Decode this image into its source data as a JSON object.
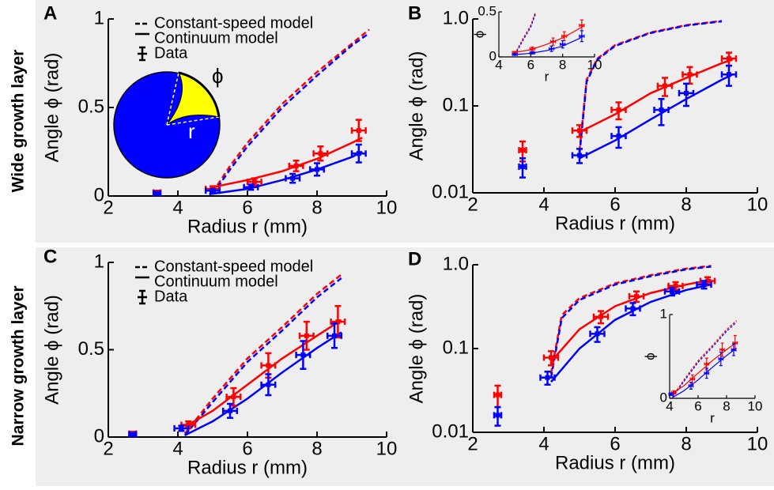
{
  "row_labels": [
    "Wide growth layer",
    "Narrow growth layer"
  ],
  "chart_data": [
    {
      "type": "line",
      "label": "A",
      "xlabel": "Radius r (mm)",
      "ylabel": "Angle ϕ  (rad)",
      "xlim": [
        2,
        10
      ],
      "ylim": [
        0,
        1
      ],
      "xticks": [
        2,
        4,
        6,
        8,
        10
      ],
      "yticks": [
        0,
        0.5,
        1
      ],
      "log_y": false,
      "legend": [
        {
          "label": "Constant-speed model",
          "style": "dashed"
        },
        {
          "label": "Continuum model",
          "style": "solid"
        },
        {
          "label": "Data",
          "style": "points"
        }
      ],
      "annotations": [
        "ϕ",
        "r"
      ],
      "series": [
        {
          "color": "#ff0000",
          "style": "dashed",
          "x": [
            5,
            5.5,
            6,
            7,
            8,
            9,
            9.5
          ],
          "values": [
            0.02,
            0.17,
            0.3,
            0.52,
            0.7,
            0.86,
            0.94
          ]
        },
        {
          "color": "#0000ff",
          "style": "dashed",
          "x": [
            5,
            5.5,
            6,
            7,
            8,
            9,
            9.5
          ],
          "values": [
            0.01,
            0.15,
            0.28,
            0.5,
            0.68,
            0.85,
            0.92
          ]
        },
        {
          "color": "#ff0000",
          "style": "solid",
          "x": [
            5,
            6,
            7,
            8,
            9,
            9.3
          ],
          "values": [
            0.05,
            0.09,
            0.14,
            0.21,
            0.3,
            0.33
          ]
        },
        {
          "color": "#0000ff",
          "style": "solid",
          "x": [
            4.9,
            6,
            7,
            8,
            9,
            9.3
          ],
          "values": [
            0.01,
            0.04,
            0.09,
            0.15,
            0.22,
            0.25
          ]
        },
        {
          "color": "#ff0000",
          "style": "points",
          "x": [
            3.4,
            5,
            6.2,
            7.4,
            8.1,
            9.2
          ],
          "values": [
            0.02,
            0.04,
            0.08,
            0.17,
            0.24,
            0.37
          ],
          "xerr": [
            0.1,
            0.2,
            0.2,
            0.2,
            0.2,
            0.2
          ],
          "yerr": [
            0.01,
            0.015,
            0.02,
            0.03,
            0.04,
            0.06
          ]
        },
        {
          "color": "#0000ff",
          "style": "points",
          "x": [
            3.4,
            5,
            6.1,
            7.3,
            8,
            9.2
          ],
          "values": [
            0.015,
            0.03,
            0.05,
            0.1,
            0.15,
            0.24
          ],
          "xerr": [
            0.1,
            0.2,
            0.2,
            0.2,
            0.2,
            0.2
          ],
          "yerr": [
            0.008,
            0.01,
            0.015,
            0.025,
            0.035,
            0.05
          ]
        }
      ]
    },
    {
      "type": "line",
      "label": "B",
      "xlabel": "Radius r (mm)",
      "ylabel": "Angle ϕ  (rad)",
      "xlim": [
        2,
        10
      ],
      "ylim": [
        0.01,
        1
      ],
      "xticks": [
        2,
        4,
        6,
        8,
        10
      ],
      "yticks": [
        0.01,
        0.1,
        {
          "value": 1,
          "label": "1.0"
        }
      ],
      "log_y": true,
      "series": [
        {
          "color": "#ff0000",
          "style": "dashed",
          "x": [
            5,
            5.2,
            5.5,
            6,
            7,
            8,
            9
          ],
          "values": [
            0.03,
            0.2,
            0.35,
            0.5,
            0.7,
            0.85,
            0.95
          ]
        },
        {
          "color": "#0000ff",
          "style": "dashed",
          "x": [
            5,
            5.2,
            5.5,
            6,
            7,
            8,
            9
          ],
          "values": [
            0.028,
            0.19,
            0.34,
            0.49,
            0.69,
            0.84,
            0.94
          ]
        },
        {
          "color": "#ff0000",
          "style": "solid",
          "x": [
            5,
            6,
            7,
            8,
            9,
            9.3
          ],
          "values": [
            0.05,
            0.08,
            0.14,
            0.21,
            0.31,
            0.34
          ]
        },
        {
          "color": "#0000ff",
          "style": "solid",
          "x": [
            5,
            6,
            7,
            8,
            9,
            9.3
          ],
          "values": [
            0.025,
            0.04,
            0.07,
            0.12,
            0.2,
            0.23
          ]
        },
        {
          "color": "#ff0000",
          "style": "points",
          "x": [
            3.4,
            5,
            6.1,
            7.4,
            8.1,
            9.2
          ],
          "values": [
            0.031,
            0.052,
            0.09,
            0.17,
            0.23,
            0.35
          ],
          "xerr": [
            0.1,
            0.2,
            0.2,
            0.2,
            0.2,
            0.2
          ],
          "yerr": [
            0.008,
            0.008,
            0.02,
            0.04,
            0.05,
            0.06
          ]
        },
        {
          "color": "#0000ff",
          "style": "points",
          "x": [
            3.4,
            5,
            6.1,
            7.3,
            8,
            9.2
          ],
          "values": [
            0.02,
            0.027,
            0.045,
            0.09,
            0.14,
            0.23
          ],
          "xerr": [
            0.1,
            0.2,
            0.2,
            0.2,
            0.2,
            0.2
          ],
          "yerr": [
            0.005,
            0.005,
            0.012,
            0.03,
            0.04,
            0.06
          ]
        }
      ],
      "inset": {
        "type": "line",
        "xlabel": "r",
        "ylabel": "ϕ",
        "xlim": [
          4,
          10
        ],
        "ylim": [
          0,
          0.5
        ],
        "xticks": [
          4,
          6,
          8,
          10
        ],
        "yticks": [
          0,
          0.5
        ],
        "log_y": false,
        "series": [
          {
            "color": "#ff0000",
            "style": "dashed",
            "x": [
              5,
              5.5,
              6,
              6.3
            ],
            "values": [
              0.03,
              0.2,
              0.35,
              0.5
            ]
          },
          {
            "color": "#0000ff",
            "style": "dashed",
            "x": [
              5,
              5.5,
              6,
              6.3
            ],
            "values": [
              0.02,
              0.18,
              0.33,
              0.48
            ]
          },
          {
            "color": "#ff0000",
            "style": "solid",
            "x": [
              5,
              6,
              7,
              8,
              9,
              9.3
            ],
            "values": [
              0.05,
              0.08,
              0.14,
              0.21,
              0.31,
              0.34
            ]
          },
          {
            "color": "#0000ff",
            "style": "solid",
            "x": [
              5,
              6,
              7,
              8,
              9,
              9.3
            ],
            "values": [
              0.025,
              0.04,
              0.07,
              0.12,
              0.2,
              0.23
            ]
          },
          {
            "color": "#ff0000",
            "style": "points",
            "x": [
              5,
              6.1,
              7.4,
              8.1,
              9.2
            ],
            "values": [
              0.05,
              0.09,
              0.17,
              0.23,
              0.35
            ],
            "xerr": [
              0.15,
              0.15,
              0.15,
              0.15,
              0.15
            ],
            "yerr": [
              0.01,
              0.02,
              0.04,
              0.05,
              0.06
            ]
          },
          {
            "color": "#0000ff",
            "style": "points",
            "x": [
              5,
              6.1,
              7.3,
              8,
              9.2
            ],
            "values": [
              0.027,
              0.045,
              0.09,
              0.14,
              0.23
            ],
            "xerr": [
              0.15,
              0.15,
              0.15,
              0.15,
              0.15
            ],
            "yerr": [
              0.01,
              0.012,
              0.03,
              0.04,
              0.06
            ]
          }
        ]
      }
    },
    {
      "type": "line",
      "label": "C",
      "xlabel": "Radius r (mm)",
      "ylabel": "Angle ϕ  (rad)",
      "xlim": [
        2,
        10
      ],
      "ylim": [
        0,
        1
      ],
      "xticks": [
        2,
        4,
        6,
        8,
        10
      ],
      "yticks": [
        0,
        0.5,
        1
      ],
      "log_y": false,
      "legend": [
        {
          "label": "Constant-speed model",
          "style": "dashed"
        },
        {
          "label": "Continuum model",
          "style": "solid"
        },
        {
          "label": "Data",
          "style": "points"
        }
      ],
      "series": [
        {
          "color": "#ff0000",
          "style": "dashed",
          "x": [
            4.2,
            5,
            6,
            7,
            8,
            8.7
          ],
          "values": [
            0.02,
            0.22,
            0.45,
            0.63,
            0.82,
            0.93
          ]
        },
        {
          "color": "#0000ff",
          "style": "dashed",
          "x": [
            4.2,
            5,
            6,
            7,
            8,
            8.7
          ],
          "values": [
            0.01,
            0.2,
            0.43,
            0.61,
            0.8,
            0.91
          ]
        },
        {
          "color": "#ff0000",
          "style": "solid",
          "x": [
            4.2,
            5,
            6,
            7,
            8,
            8.7
          ],
          "values": [
            0.06,
            0.15,
            0.3,
            0.45,
            0.58,
            0.67
          ]
        },
        {
          "color": "#0000ff",
          "style": "solid",
          "x": [
            4.2,
            5,
            6,
            7,
            8,
            8.7
          ],
          "values": [
            0.01,
            0.09,
            0.22,
            0.37,
            0.51,
            0.6
          ]
        },
        {
          "color": "#ff0000",
          "style": "points",
          "x": [
            2.7,
            4.3,
            5.6,
            6.6,
            7.7,
            8.6
          ],
          "values": [
            0.02,
            0.07,
            0.23,
            0.41,
            0.58,
            0.66
          ],
          "xerr": [
            0.1,
            0.2,
            0.2,
            0.2,
            0.2,
            0.2
          ],
          "yerr": [
            0.01,
            0.02,
            0.05,
            0.07,
            0.08,
            0.09
          ]
        },
        {
          "color": "#0000ff",
          "style": "points",
          "x": [
            2.7,
            4.1,
            5.5,
            6.6,
            7.6,
            8.5
          ],
          "values": [
            0.015,
            0.05,
            0.15,
            0.3,
            0.47,
            0.58
          ],
          "xerr": [
            0.1,
            0.2,
            0.2,
            0.2,
            0.2,
            0.2
          ],
          "yerr": [
            0.008,
            0.015,
            0.04,
            0.06,
            0.08,
            0.07
          ]
        }
      ]
    },
    {
      "type": "line",
      "label": "D",
      "xlabel": "Radius r (mm)",
      "ylabel": "Angle ϕ  (rad)",
      "xlim": [
        2,
        10
      ],
      "ylim": [
        0.01,
        1
      ],
      "xticks": [
        2,
        4,
        6,
        8,
        10
      ],
      "yticks": [
        0.01,
        0.1,
        {
          "value": 1,
          "label": "1.0"
        }
      ],
      "log_y": true,
      "series": [
        {
          "color": "#ff0000",
          "style": "dashed",
          "x": [
            4.2,
            4.5,
            5,
            6,
            7,
            8,
            8.7
          ],
          "values": [
            0.05,
            0.25,
            0.4,
            0.6,
            0.75,
            0.9,
            0.97
          ]
        },
        {
          "color": "#0000ff",
          "style": "dashed",
          "x": [
            4.2,
            4.5,
            5,
            6,
            7,
            8,
            8.7
          ],
          "values": [
            0.045,
            0.23,
            0.38,
            0.58,
            0.73,
            0.88,
            0.95
          ]
        },
        {
          "color": "#ff0000",
          "style": "solid",
          "x": [
            4.2,
            5,
            6,
            7,
            8,
            8.7
          ],
          "values": [
            0.07,
            0.17,
            0.32,
            0.46,
            0.58,
            0.66
          ]
        },
        {
          "color": "#0000ff",
          "style": "solid",
          "x": [
            4.2,
            5,
            6,
            7,
            8,
            8.7
          ],
          "values": [
            0.04,
            0.1,
            0.22,
            0.36,
            0.5,
            0.58
          ]
        },
        {
          "color": "#ff0000",
          "style": "points",
          "x": [
            2.7,
            4.2,
            5.6,
            6.6,
            7.7,
            8.6
          ],
          "values": [
            0.028,
            0.078,
            0.24,
            0.42,
            0.56,
            0.64
          ],
          "xerr": [
            0.1,
            0.2,
            0.2,
            0.2,
            0.2,
            0.2
          ],
          "yerr": [
            0.008,
            0.015,
            0.04,
            0.06,
            0.06,
            0.07
          ]
        },
        {
          "color": "#0000ff",
          "style": "points",
          "x": [
            2.7,
            4.1,
            5.5,
            6.5,
            7.6,
            8.5
          ],
          "values": [
            0.016,
            0.045,
            0.15,
            0.3,
            0.48,
            0.58
          ],
          "xerr": [
            0.1,
            0.2,
            0.2,
            0.2,
            0.2,
            0.2
          ],
          "yerr": [
            0.004,
            0.008,
            0.03,
            0.05,
            0.05,
            0.06
          ]
        }
      ],
      "inset": {
        "type": "line",
        "xlabel": "r",
        "ylabel": "ϕ",
        "xlim": [
          4,
          10
        ],
        "ylim": [
          0,
          1
        ],
        "xticks": [
          4,
          6,
          8,
          10
        ],
        "yticks": [
          0,
          1
        ],
        "log_y": false,
        "series": [
          {
            "color": "#ff0000",
            "style": "dashed",
            "x": [
              4.2,
              5,
              6,
              7,
              8,
              8.7
            ],
            "values": [
              0.02,
              0.22,
              0.45,
              0.63,
              0.82,
              0.93
            ]
          },
          {
            "color": "#0000ff",
            "style": "dashed",
            "x": [
              4.2,
              5,
              6,
              7,
              8,
              8.7
            ],
            "values": [
              0.01,
              0.2,
              0.43,
              0.61,
              0.8,
              0.91
            ]
          },
          {
            "color": "#ff0000",
            "style": "solid",
            "x": [
              4.2,
              5,
              6,
              7,
              8,
              8.7
            ],
            "values": [
              0.06,
              0.15,
              0.3,
              0.45,
              0.58,
              0.67
            ]
          },
          {
            "color": "#0000ff",
            "style": "solid",
            "x": [
              4.2,
              5,
              6,
              7,
              8,
              8.7
            ],
            "values": [
              0.01,
              0.09,
              0.22,
              0.37,
              0.51,
              0.6
            ]
          },
          {
            "color": "#ff0000",
            "style": "points",
            "x": [
              4.3,
              5.6,
              6.6,
              7.7,
              8.6
            ],
            "values": [
              0.07,
              0.23,
              0.41,
              0.58,
              0.66
            ],
            "xerr": [
              0.15,
              0.15,
              0.15,
              0.15,
              0.15
            ],
            "yerr": [
              0.02,
              0.05,
              0.07,
              0.08,
              0.09
            ]
          },
          {
            "color": "#0000ff",
            "style": "points",
            "x": [
              4.1,
              5.5,
              6.6,
              7.6,
              8.5
            ],
            "values": [
              0.05,
              0.15,
              0.3,
              0.47,
              0.58
            ],
            "xerr": [
              0.15,
              0.15,
              0.15,
              0.15,
              0.15
            ],
            "yerr": [
              0.015,
              0.04,
              0.06,
              0.08,
              0.07
            ]
          }
        ]
      }
    }
  ]
}
